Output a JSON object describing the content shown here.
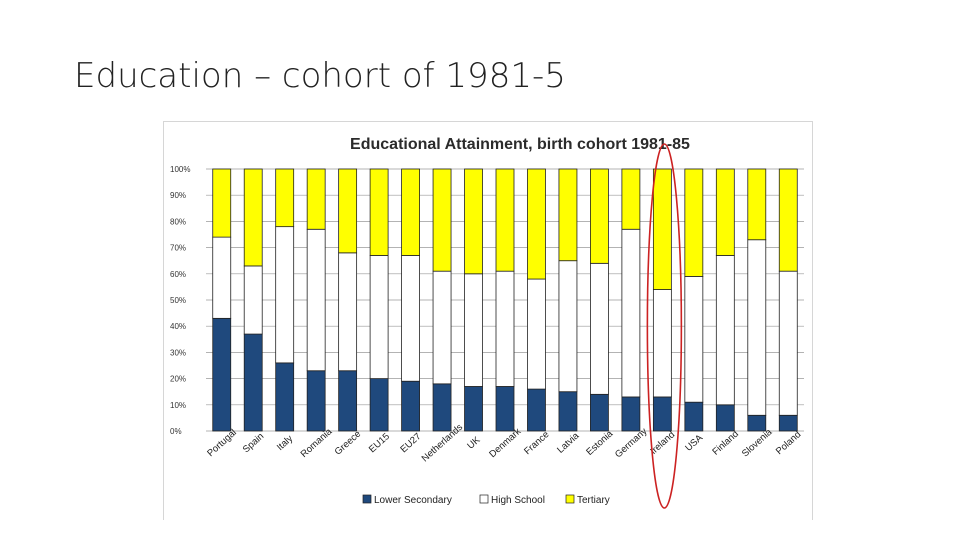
{
  "slide": {
    "title": "Education – cohort of 1981-5"
  },
  "colors": {
    "lower_secondary": "#1f497d",
    "high_school": "#ffffff",
    "tertiary": "#ffff00",
    "highlight_ring": "#cc2222"
  },
  "chart_data": {
    "type": "bar",
    "stacked": true,
    "title": "Educational Attainment, birth cohort 1981-85",
    "xlabel": "",
    "ylabel": "",
    "ylim": [
      0,
      100
    ],
    "yticks": [
      "0%",
      "10%",
      "20%",
      "30%",
      "40%",
      "50%",
      "60%",
      "70%",
      "80%",
      "90%",
      "100%"
    ],
    "grid": true,
    "legend_position": "bottom",
    "categories": [
      "Portugal",
      "Spain",
      "Italy",
      "Romania",
      "Greece",
      "EU15",
      "EU27",
      "Netherlands",
      "UK",
      "Denmark",
      "France",
      "Latvia",
      "Estonia",
      "Germany",
      "Ireland",
      "USA",
      "Finland",
      "Slovenia",
      "Poland"
    ],
    "series": [
      {
        "name": "Lower Secondary",
        "values": [
          43,
          37,
          26,
          23,
          23,
          20,
          19,
          18,
          17,
          17,
          16,
          15,
          14,
          13,
          13,
          11,
          10,
          6,
          6
        ]
      },
      {
        "name": "High School",
        "values": [
          31,
          26,
          52,
          54,
          45,
          47,
          48,
          43,
          43,
          44,
          42,
          50,
          50,
          64,
          41,
          48,
          57,
          67,
          55
        ]
      },
      {
        "name": "Tertiary",
        "values": [
          26,
          37,
          22,
          23,
          32,
          33,
          33,
          39,
          40,
          39,
          42,
          35,
          36,
          23,
          46,
          41,
          33,
          27,
          39
        ]
      }
    ],
    "highlighted_category": "Ireland"
  }
}
